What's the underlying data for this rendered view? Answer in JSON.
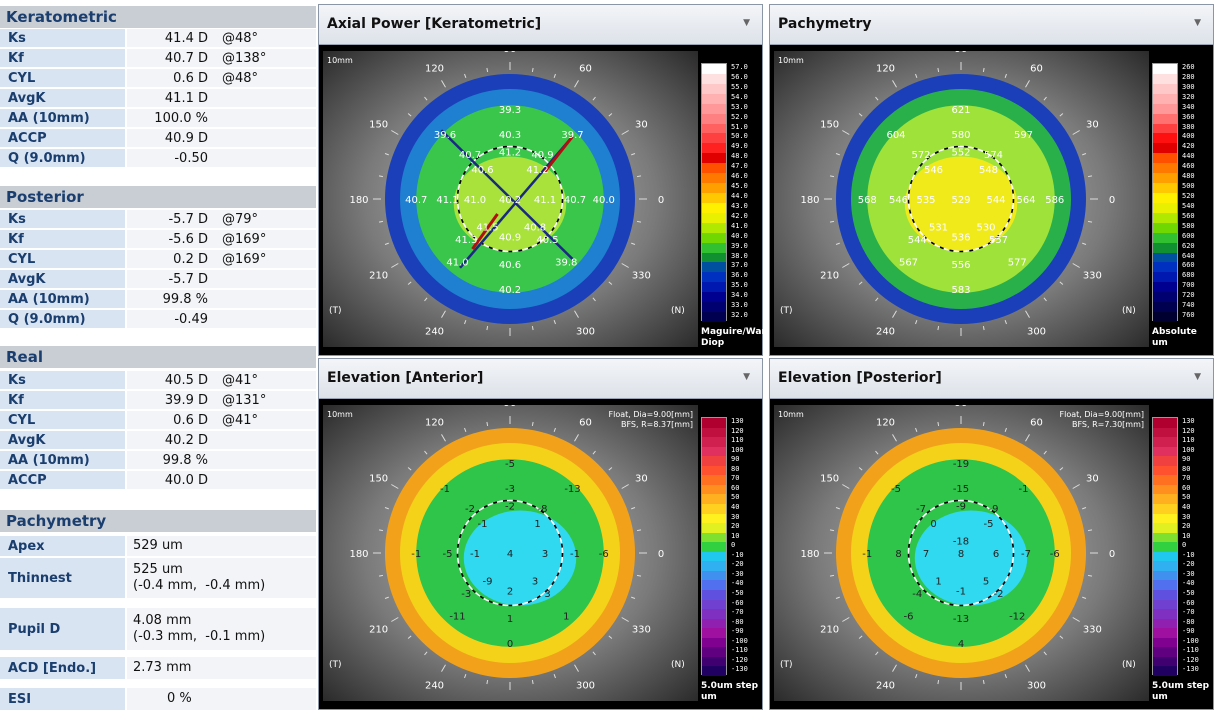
{
  "left": {
    "keratometric": {
      "title": "Keratometric",
      "rows": [
        {
          "label": "Ks",
          "value": "41.4 D",
          "axis": "@48°"
        },
        {
          "label": "Kf",
          "value": "40.7 D",
          "axis": "@138°"
        },
        {
          "label": "CYL",
          "value": "0.6 D",
          "axis": "@48°"
        },
        {
          "label": "AvgK",
          "value": "41.1 D",
          "axis": ""
        },
        {
          "label": "AA (10mm)",
          "value": "100.0 %",
          "axis": ""
        },
        {
          "label": "ACCP",
          "value": "40.9 D",
          "axis": ""
        },
        {
          "label": "Q (9.0mm)",
          "value": "-0.50",
          "axis": ""
        }
      ]
    },
    "posterior": {
      "title": "Posterior",
      "rows": [
        {
          "label": "Ks",
          "value": "-5.7 D",
          "axis": "@79°"
        },
        {
          "label": "Kf",
          "value": "-5.6 D",
          "axis": "@169°"
        },
        {
          "label": "CYL",
          "value": "0.2 D",
          "axis": "@169°"
        },
        {
          "label": "AvgK",
          "value": "-5.7 D",
          "axis": ""
        },
        {
          "label": "AA (10mm)",
          "value": "99.8 %",
          "axis": ""
        },
        {
          "label": "Q (9.0mm)",
          "value": "-0.49",
          "axis": ""
        }
      ]
    },
    "real": {
      "title": "Real",
      "rows": [
        {
          "label": "Ks",
          "value": "40.5 D",
          "axis": "@41°"
        },
        {
          "label": "Kf",
          "value": "39.9 D",
          "axis": "@131°"
        },
        {
          "label": "CYL",
          "value": "0.6 D",
          "axis": "@41°"
        },
        {
          "label": "AvgK",
          "value": "40.2 D",
          "axis": ""
        },
        {
          "label": "AA (10mm)",
          "value": "99.8 %",
          "axis": ""
        },
        {
          "label": "ACCP",
          "value": "40.0 D",
          "axis": ""
        }
      ]
    },
    "pachymetry": {
      "title": "Pachymetry",
      "apex_label": "Apex",
      "apex_value": "529 um",
      "thinnest_label": "Thinnest",
      "thinnest_value": "525 um",
      "thinnest_pos": "(-0.4 mm,  -0.4 mm)",
      "pupil_label": "Pupil D",
      "pupil_value": "4.08 mm",
      "pupil_pos": "(-0.3 mm,  -0.1 mm)",
      "acd_label": "ACD [Endo.]",
      "acd_value": "2.73 mm",
      "esi_label": "ESI",
      "esi_value": "0 %"
    }
  },
  "common": {
    "mm": "10mm",
    "deg": [
      "90",
      "60",
      "30",
      "0",
      "330",
      "300",
      "270",
      "240",
      "210",
      "180",
      "150",
      "120"
    ],
    "t": "(T)",
    "n": "(N)"
  },
  "panels": {
    "axial": {
      "title": "Axial Power [Keratometric]",
      "dropdown": "▼",
      "scale_labels": [
        "57.0",
        "56.0",
        "55.0",
        "54.0",
        "53.0",
        "52.0",
        "51.0",
        "50.0",
        "49.0",
        "48.0",
        "47.0",
        "46.0",
        "45.0",
        "44.0",
        "43.0",
        "42.0",
        "41.0",
        "40.0",
        "39.0",
        "38.0",
        "37.0",
        "36.0",
        "35.0",
        "34.0",
        "33.0",
        "32.0"
      ],
      "units1": "Maguire/Wari",
      "units2": "Diop",
      "values": [
        "39.3",
        "39.6",
        "40.3",
        "39.7",
        "40.7",
        "41.2",
        "40.9",
        "40.6",
        "41.2",
        "40.7",
        "41.1",
        "41.0",
        "40.2",
        "41.1",
        "40.7",
        "40.0",
        "41.5",
        "40.8",
        "40.9",
        "41.3",
        "40.5",
        "41.0",
        "40.6",
        "39.8",
        "40.2"
      ],
      "accent": "#22c03a"
    },
    "pachy": {
      "title": "Pachymetry",
      "dropdown": "▼",
      "scale_labels": [
        "260",
        "280",
        "300",
        "320",
        "340",
        "360",
        "380",
        "400",
        "420",
        "440",
        "460",
        "480",
        "500",
        "520",
        "540",
        "560",
        "580",
        "600",
        "620",
        "640",
        "660",
        "680",
        "700",
        "720",
        "740",
        "760"
      ],
      "units1": "Absolute",
      "units2": "um",
      "values": [
        "621",
        "604",
        "580",
        "597",
        "572",
        "552",
        "574",
        "546",
        "548",
        "568",
        "546",
        "535",
        "529",
        "544",
        "564",
        "586",
        "531",
        "530",
        "536",
        "544",
        "557",
        "567",
        "556",
        "577",
        "583"
      ]
    },
    "elevA": {
      "title": "Elevation [Anterior]",
      "dropdown": "▼",
      "float_line": "Float, Dia=9.00[mm]",
      "bfs_line": "BFS, R=8.37[mm]",
      "scale_labels": [
        "130",
        "120",
        "110",
        "100",
        "90",
        "80",
        "70",
        "60",
        "50",
        "40",
        "30",
        "20",
        "10",
        "0",
        "-10",
        "-20",
        "-30",
        "-40",
        "-50",
        "-60",
        "-70",
        "-80",
        "-90",
        "-100",
        "-110",
        "-120",
        "-130"
      ],
      "units1": "5.0um step",
      "units2": "um",
      "values": [
        "-5",
        "-1",
        "-3",
        "-13",
        "-2",
        "-2",
        "-8",
        "-1",
        "1",
        "-1",
        "-5",
        "-1",
        "4",
        "3",
        "-1",
        "-6",
        "-9",
        "3",
        "2",
        "-3",
        "3",
        "-11",
        "1",
        "1",
        "0"
      ]
    },
    "elevP": {
      "title": "Elevation [Posterior]",
      "dropdown": "▼",
      "float_line": "Float, Dia=9.00[mm]",
      "bfs_line": "BFS, R=7.30[mm]",
      "scale_labels": [
        "130",
        "120",
        "110",
        "100",
        "90",
        "80",
        "70",
        "60",
        "50",
        "40",
        "30",
        "20",
        "10",
        "0",
        "-10",
        "-20",
        "-30",
        "-40",
        "-50",
        "-60",
        "-70",
        "-80",
        "-90",
        "-100",
        "-110",
        "-120",
        "-130"
      ],
      "units1": "5.0um step",
      "units2": "um",
      "values": [
        "-19",
        "-5",
        "-15",
        "-1",
        "-7",
        "-9",
        "-9",
        "0",
        "-5",
        "-1",
        "8",
        "7",
        "8",
        "6",
        "-7",
        "-6",
        "1",
        "5",
        "-1",
        "-4",
        "-2",
        "-6",
        "-13",
        "-12",
        "4",
        "-18"
      ]
    }
  }
}
